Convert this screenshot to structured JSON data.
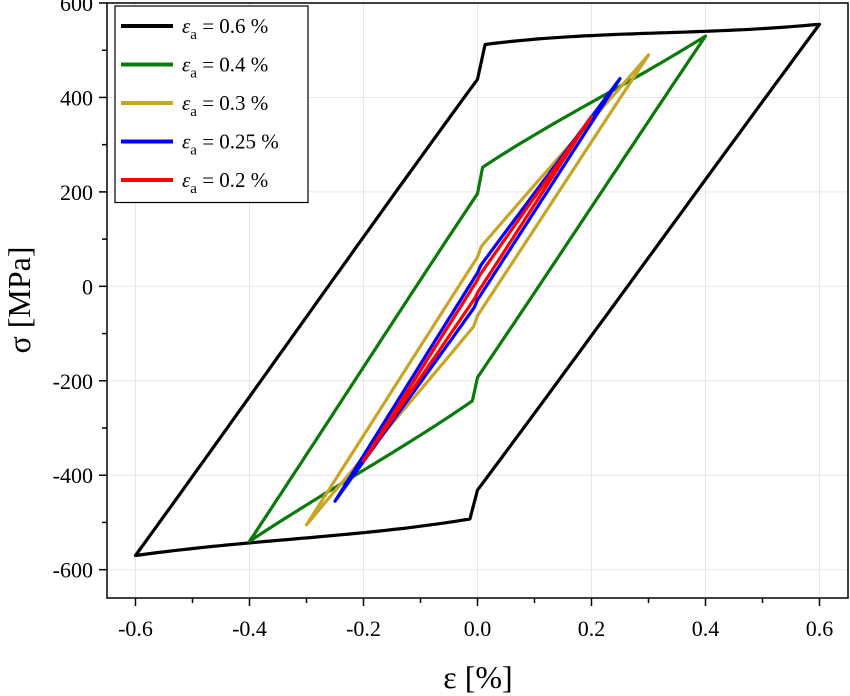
{
  "chart_data": {
    "type": "line",
    "xlabel": "ε [%]",
    "ylabel": "σ [MPa]",
    "xlim": [
      -0.65,
      0.65
    ],
    "ylim": [
      -660,
      600
    ],
    "x_ticks": [
      -0.6,
      -0.4,
      -0.2,
      0.0,
      0.2,
      0.4,
      0.6
    ],
    "x_tick_labels": [
      "-0.6",
      "-0.4",
      "-0.2",
      "0.0",
      "0.2",
      "0.4",
      "0.6"
    ],
    "y_ticks": [
      -600,
      -400,
      -200,
      0,
      200,
      400,
      600
    ],
    "y_tick_labels": [
      "-600",
      "-400",
      "-200",
      "0",
      "200",
      "400",
      "600"
    ],
    "grid": true,
    "legend_position": "top-left",
    "series": [
      {
        "name": "εa = 0.6 %",
        "legend_symbol": "ε",
        "legend_sub": "a",
        "legend_value": " = 0.6 %",
        "color": "#000000",
        "tip": [
          0.6,
          555
        ],
        "valley": [
          -0.6,
          -570
        ],
        "upper_mid": 400,
        "lower_mid": -400,
        "bulge_upper": 110,
        "bulge_lower": 90
      },
      {
        "name": "εa = 0.4 %",
        "legend_symbol": "ε",
        "legend_sub": "a",
        "legend_value": " = 0.4 %",
        "color": "#0a7a0a",
        "tip": [
          0.4,
          530
        ],
        "valley": [
          -0.4,
          -540
        ],
        "upper_mid": 170,
        "lower_mid": -170,
        "bulge_upper": 75,
        "bulge_lower": 65
      },
      {
        "name": "εa = 0.3 %",
        "legend_symbol": "ε",
        "legend_sub": "a",
        "legend_value": " = 0.3 %",
        "color": "#c8a526",
        "tip": [
          0.3,
          490
        ],
        "valley": [
          -0.3,
          -505
        ],
        "upper_mid": 55,
        "lower_mid": -55,
        "bulge_upper": 20,
        "bulge_lower": 20
      },
      {
        "name": "εa = 0.25 %",
        "legend_symbol": "ε",
        "legend_sub": "a",
        "legend_value": " = 0.25 %",
        "color": "#0000ff",
        "tip": [
          0.25,
          440
        ],
        "valley": [
          -0.25,
          -455
        ],
        "upper_mid": 25,
        "lower_mid": -25,
        "bulge_upper": 10,
        "bulge_lower": 10
      },
      {
        "name": "εa = 0.2 %",
        "legend_symbol": "ε",
        "legend_sub": "a",
        "legend_value": " = 0.2 %",
        "color": "#ff0000",
        "tip": [
          0.2,
          360
        ],
        "valley": [
          -0.2,
          -370
        ],
        "upper_mid": 12,
        "lower_mid": -12,
        "bulge_upper": 5,
        "bulge_lower": 5
      }
    ]
  }
}
